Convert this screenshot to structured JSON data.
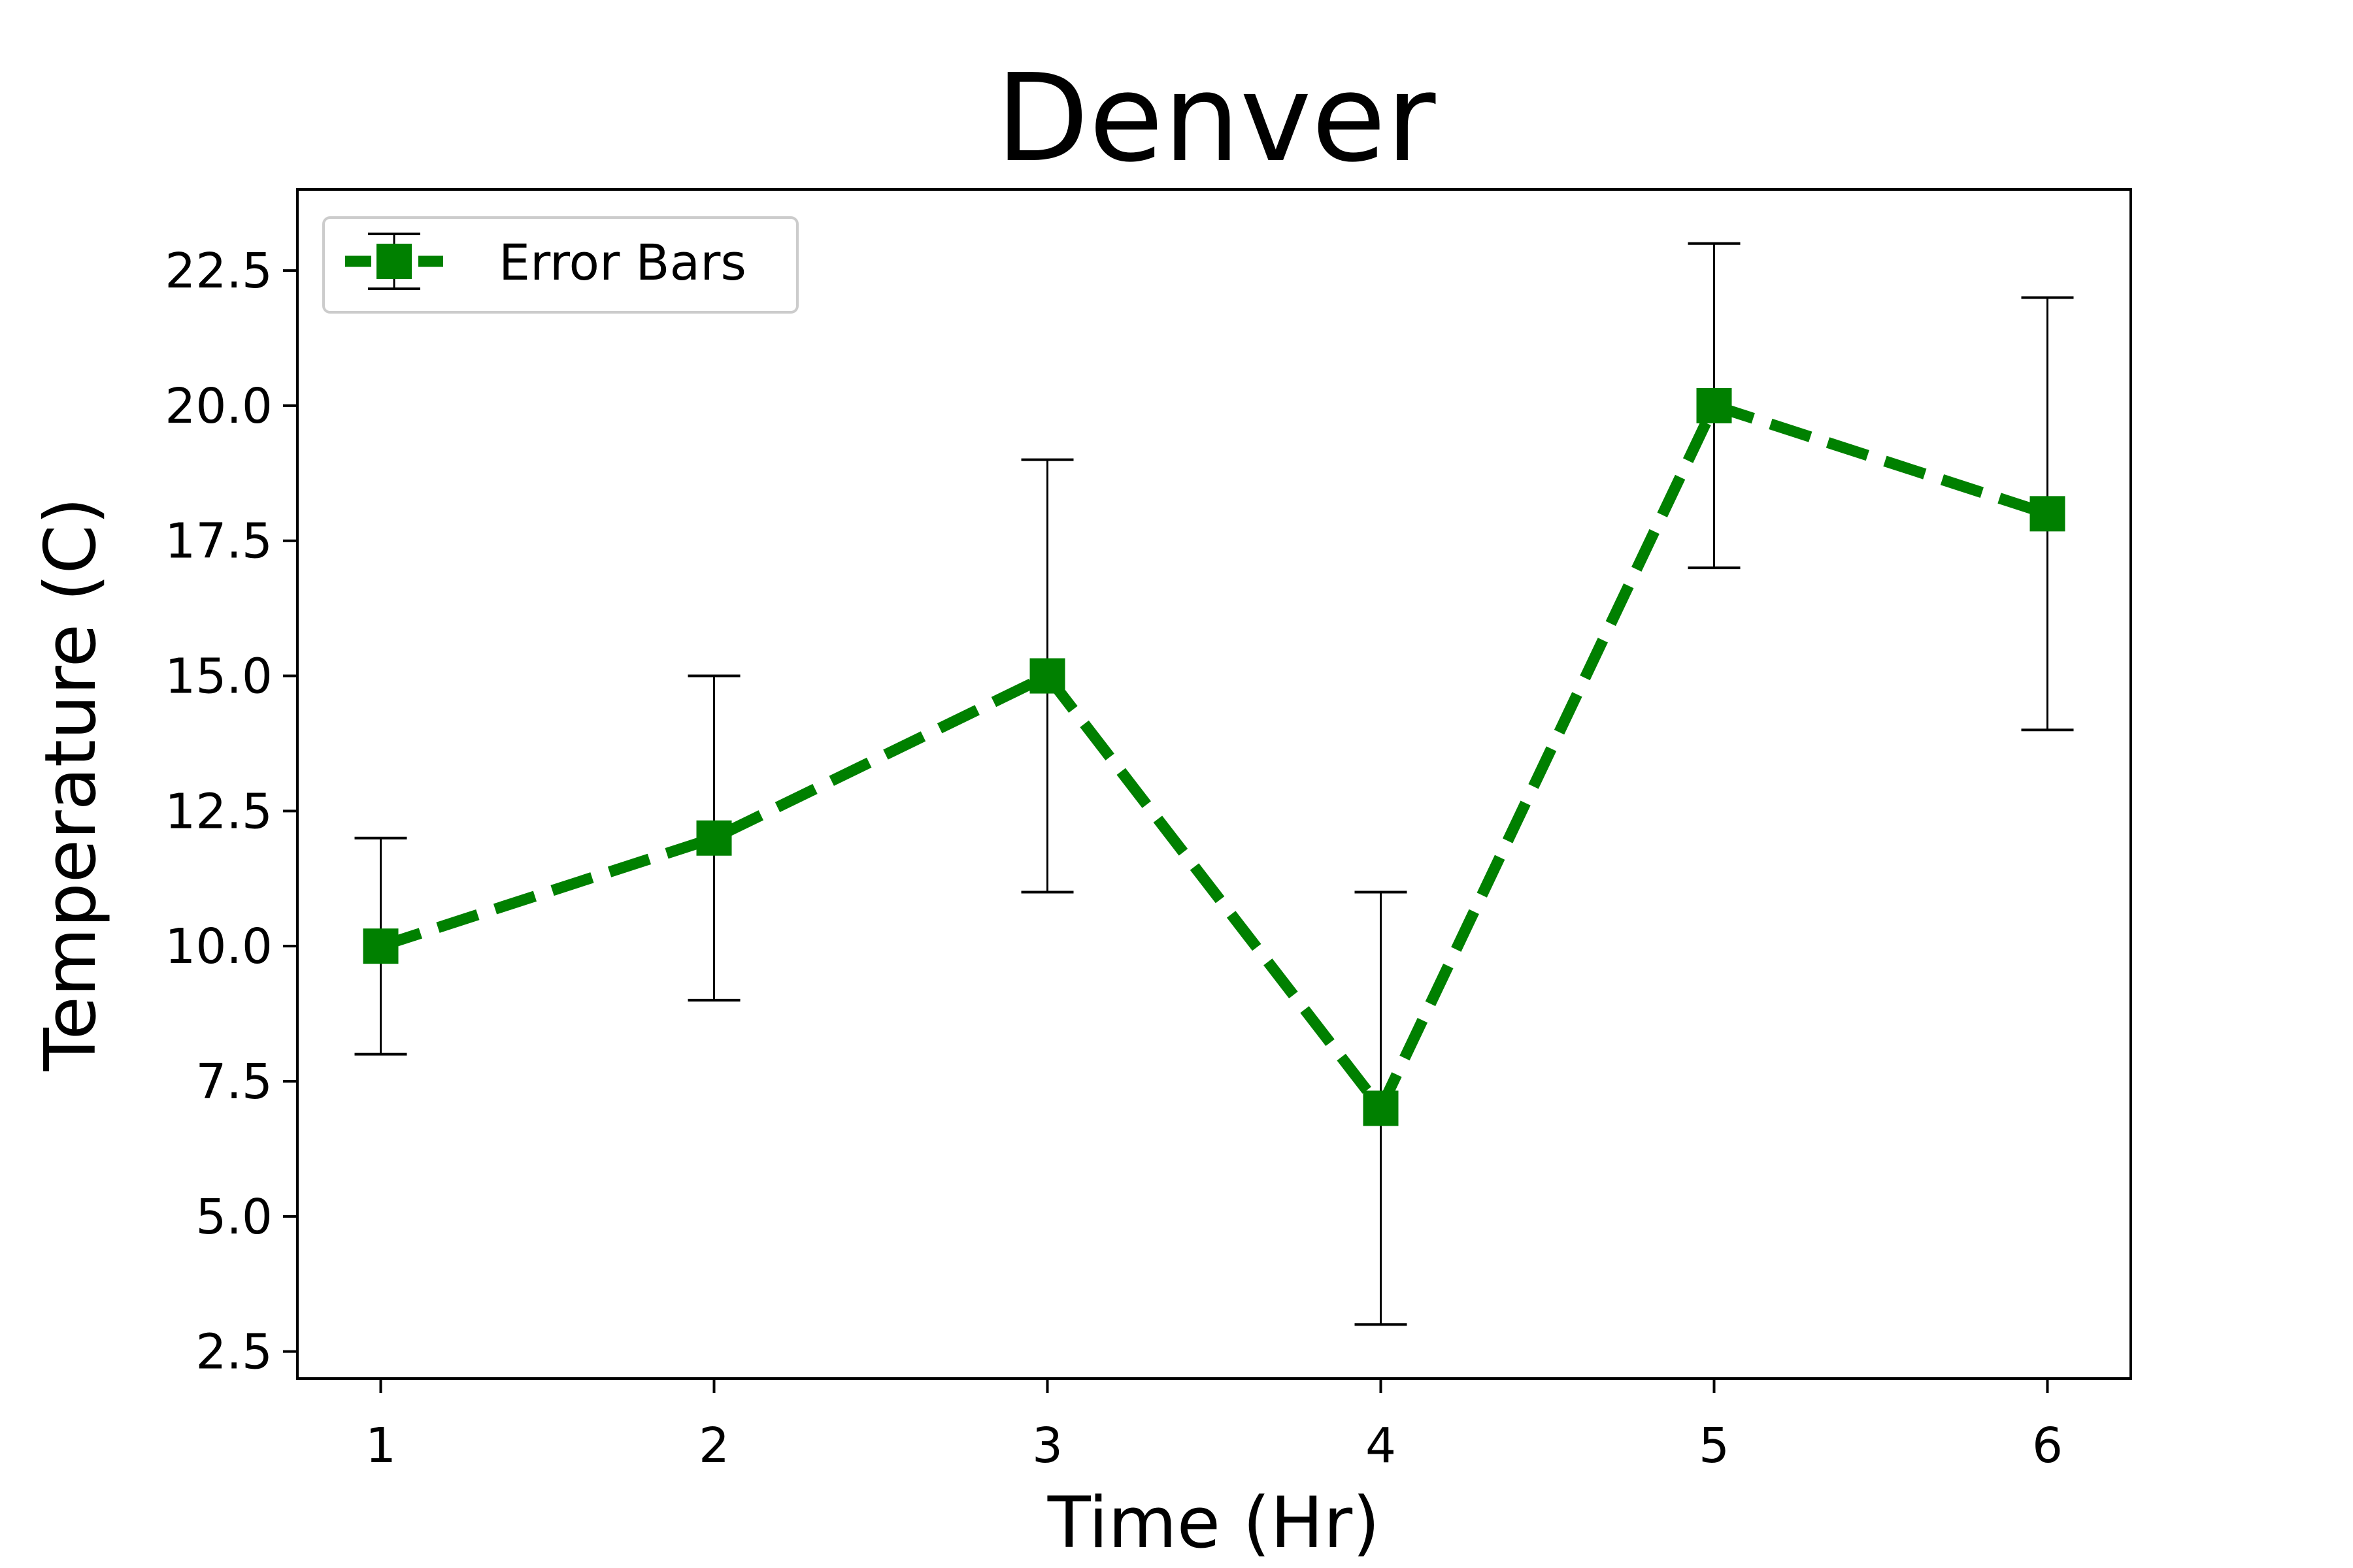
{
  "chart_data": {
    "type": "line",
    "title": "Denver",
    "xlabel": "Time (Hr)",
    "ylabel": "Temperature (C)",
    "x": [
      1,
      2,
      3,
      4,
      5,
      6
    ],
    "series": [
      {
        "name": "Error Bars",
        "values": [
          10,
          12,
          15,
          7,
          20,
          18
        ],
        "error": [
          2,
          3,
          4,
          4,
          3,
          4
        ],
        "color": "#008000",
        "line_style": "dashed",
        "marker": "square"
      }
    ],
    "xticks": [
      "1",
      "2",
      "3",
      "4",
      "5",
      "6"
    ],
    "yticks": [
      "2.5",
      "5.0",
      "7.5",
      "10.0",
      "12.5",
      "15.0",
      "17.5",
      "20.0",
      "22.5"
    ],
    "xlim": [
      0.75,
      6.25
    ],
    "ylim": [
      2.0,
      24.0
    ],
    "grid": false,
    "legend_position": "top-left",
    "errorbar_color": "#000000"
  }
}
